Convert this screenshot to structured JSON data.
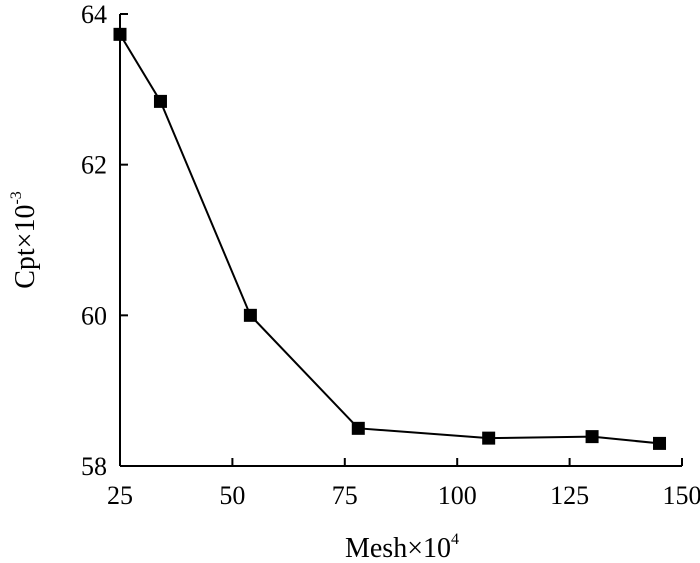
{
  "chart_data": {
    "type": "line",
    "title": "",
    "xlabel": {
      "base": "Mesh×10",
      "exponent": "4"
    },
    "ylabel": {
      "base": "Cpt×10",
      "exponent": "-3"
    },
    "xlim": [
      25,
      150
    ],
    "ylim": [
      58,
      64
    ],
    "xticks": [
      25,
      50,
      75,
      100,
      125,
      150
    ],
    "yticks": [
      58,
      60,
      62,
      64
    ],
    "grid": false,
    "series": [
      {
        "marker": "square",
        "color": "#000000",
        "x": [
          25,
          34,
          54,
          78,
          107,
          130,
          145
        ],
        "y": [
          63.73,
          62.84,
          60.0,
          58.5,
          58.37,
          58.39,
          58.3
        ]
      }
    ]
  }
}
